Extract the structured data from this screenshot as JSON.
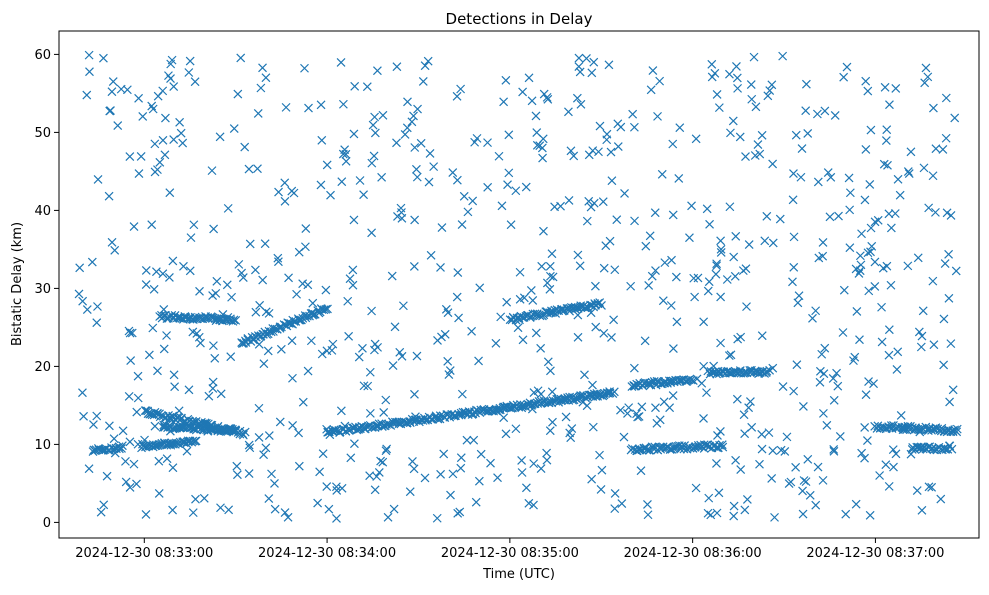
{
  "chart_data": {
    "type": "scatter",
    "title": "Detections in Delay",
    "xlabel": "Time (UTC)",
    "ylabel": "Bistatic Delay (km)",
    "marker": "x",
    "color": "#1f77b4",
    "grid": false,
    "x_axis": {
      "type": "time",
      "range": [
        "2024-12-30 08:32:32",
        "2024-12-30 08:37:34"
      ],
      "ticks": [
        "2024-12-30 08:33:00",
        "2024-12-30 08:34:00",
        "2024-12-30 08:35:00",
        "2024-12-30 08:36:00",
        "2024-12-30 08:37:00"
      ]
    },
    "y_axis": {
      "range": [
        -2,
        63
      ],
      "ticks": [
        0,
        10,
        20,
        30,
        40,
        50,
        60
      ]
    },
    "tracks": [
      {
        "from": [
          "2024-12-30 08:32:43",
          9.3
        ],
        "to": [
          "2024-12-30 08:32:53",
          9.6
        ]
      },
      {
        "from": [
          "2024-12-30 08:32:59",
          9.8
        ],
        "to": [
          "2024-12-30 08:33:17",
          10.4
        ]
      },
      {
        "from": [
          "2024-12-30 08:33:00",
          14.2
        ],
        "to": [
          "2024-12-30 08:33:33",
          11.4
        ]
      },
      {
        "from": [
          "2024-12-30 08:33:06",
          12.3
        ],
        "to": [
          "2024-12-30 08:33:30",
          11.8
        ]
      },
      {
        "from": [
          "2024-12-30 08:33:05",
          26.4
        ],
        "to": [
          "2024-12-30 08:33:30",
          26.0
        ]
      },
      {
        "from": [
          "2024-12-30 08:33:32",
          23.0
        ],
        "to": [
          "2024-12-30 08:34:00",
          27.5
        ]
      },
      {
        "from": [
          "2024-12-30 08:34:00",
          11.5
        ],
        "to": [
          "2024-12-30 08:35:34",
          16.6
        ]
      },
      {
        "from": [
          "2024-12-30 08:35:00",
          26.0
        ],
        "to": [
          "2024-12-30 08:35:30",
          28.0
        ]
      },
      {
        "from": [
          "2024-12-30 08:35:40",
          17.5
        ],
        "to": [
          "2024-12-30 08:36:00",
          18.4
        ]
      },
      {
        "from": [
          "2024-12-30 08:35:40",
          9.4
        ],
        "to": [
          "2024-12-30 08:36:10",
          9.8
        ]
      },
      {
        "from": [
          "2024-12-30 08:36:05",
          19.2
        ],
        "to": [
          "2024-12-30 08:36:25",
          19.3
        ]
      },
      {
        "from": [
          "2024-12-30 08:37:00",
          12.3
        ],
        "to": [
          "2024-12-30 08:37:27",
          11.8
        ]
      },
      {
        "from": [
          "2024-12-30 08:37:12",
          9.4
        ],
        "to": [
          "2024-12-30 08:37:25",
          9.6
        ]
      }
    ],
    "scatter_noise": {
      "time_range": [
        "2024-12-30 08:32:38",
        "2024-12-30 08:37:27"
      ],
      "delay_range": [
        0.5,
        60
      ],
      "count": 820,
      "seed": 20241230
    }
  }
}
